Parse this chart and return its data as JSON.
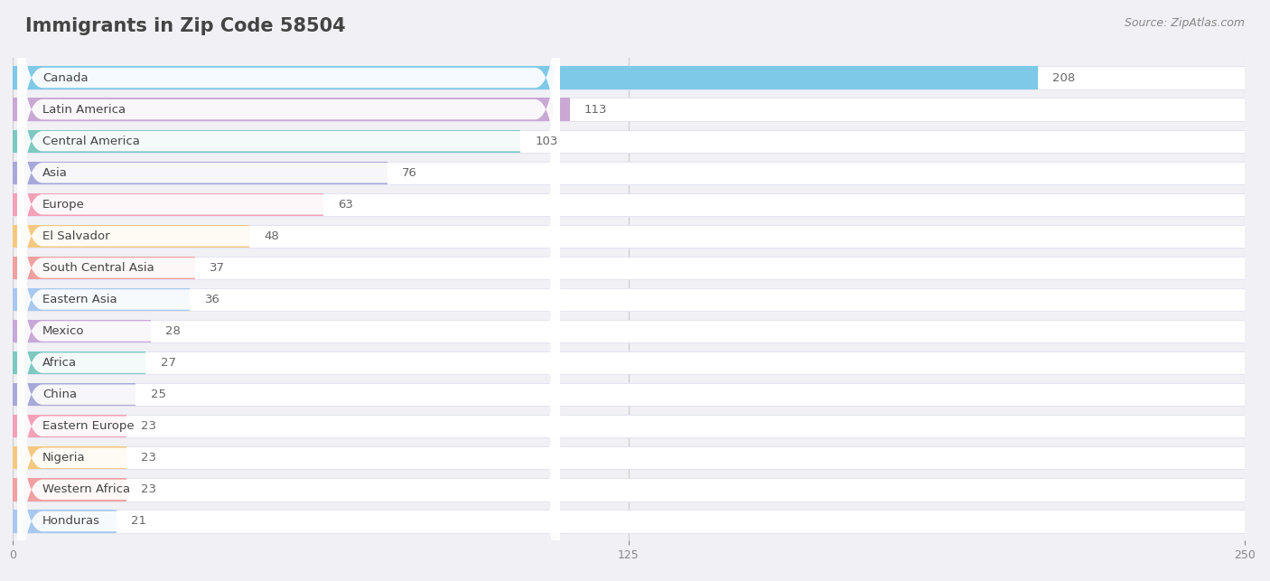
{
  "title": "Immigrants in Zip Code 58504",
  "source": "Source: ZipAtlas.com",
  "categories": [
    "Canada",
    "Latin America",
    "Central America",
    "Asia",
    "Europe",
    "El Salvador",
    "South Central Asia",
    "Eastern Asia",
    "Mexico",
    "Africa",
    "China",
    "Eastern Europe",
    "Nigeria",
    "Western Africa",
    "Honduras"
  ],
  "values": [
    208,
    113,
    103,
    76,
    63,
    48,
    37,
    36,
    28,
    27,
    25,
    23,
    23,
    23,
    21
  ],
  "bar_colors": [
    "#7ec8e8",
    "#c9a8d4",
    "#7dc8c0",
    "#a8a8d8",
    "#f4a0b8",
    "#f5c880",
    "#f0a0a0",
    "#a8c8f0",
    "#c8a8d8",
    "#7dc8c0",
    "#a8a8d8",
    "#f4a0b8",
    "#f5c880",
    "#f0a0a0",
    "#a8c8f0"
  ],
  "bar_bg_colors": [
    "#bde4f5",
    "#e4d0ee",
    "#b0e4e0",
    "#d0d0f0",
    "#fad0e0",
    "#fde8c0",
    "#fad0d0",
    "#d0e4f8",
    "#e4d0ee",
    "#b0e4e0",
    "#d0d0f0",
    "#fad0e0",
    "#fde8c0",
    "#fad0d0",
    "#d0e4f8"
  ],
  "xlim": [
    0,
    250
  ],
  "xticks": [
    0,
    125,
    250
  ],
  "background_color": "#f0f0f5",
  "row_bg_color": "#f8f8fc",
  "bar_background": "#ffffff",
  "title_fontsize": 15,
  "source_fontsize": 9,
  "label_fontsize": 9.5,
  "value_fontsize": 9.5,
  "title_color": "#444444",
  "label_color": "#444444",
  "value_color": "#666666"
}
